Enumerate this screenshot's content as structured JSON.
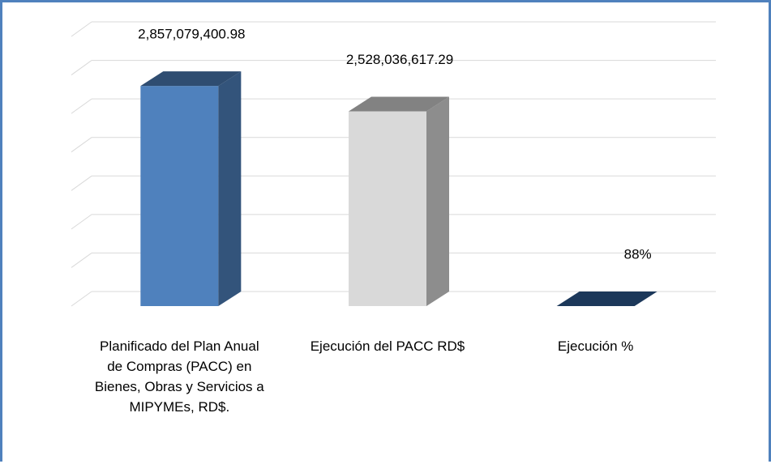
{
  "chart_data": {
    "type": "bar3d",
    "categories": [
      "Planificado del Plan Anual de Compras (PACC) en Bienes, Obras y Servicios a MIPYMEs, RD$.",
      "Ejecución del PACC RD$",
      "Ejecución %"
    ],
    "values": [
      2857079400.98,
      2528036617.29,
      88
    ],
    "value_labels": [
      "2,857,079,400.98",
      "2,528,036,617.29",
      "88%"
    ],
    "colors": [
      "#4f81bd",
      "#d9d9d9",
      "#2f5e96"
    ],
    "ylim": [
      0,
      3500000000
    ],
    "yticks": [
      0,
      500000000,
      1000000000,
      1500000000,
      2000000000,
      2500000000,
      3000000000,
      3500000000
    ],
    "grid": true
  }
}
